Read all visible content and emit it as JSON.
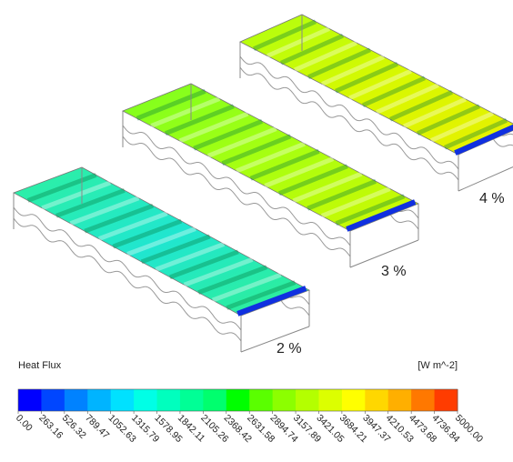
{
  "panels": [
    {
      "label": "2 %"
    },
    {
      "label": "3 %"
    },
    {
      "label": "4 %"
    }
  ],
  "colorbar": {
    "title": "Heat Flux",
    "unit": "[W m^-2]",
    "colors": [
      "#0000ff",
      "#0046ff",
      "#0082ff",
      "#00b4ff",
      "#00e1ff",
      "#00ffe6",
      "#00ffbe",
      "#00ff96",
      "#00ff6e",
      "#00ff00",
      "#5aff00",
      "#8cff00",
      "#b4ff00",
      "#dcff00",
      "#ffff00",
      "#ffd700",
      "#ffaf00",
      "#ff7800",
      "#ff3c00"
    ],
    "ticks": [
      {
        "value": 0,
        "label": "0.00"
      },
      {
        "value": 263.16,
        "label": "263.16"
      },
      {
        "value": 526.32,
        "label": "526.32"
      },
      {
        "value": 789.47,
        "label": "789.47"
      },
      {
        "value": 1052.63,
        "label": "1052.63"
      },
      {
        "value": 1315.79,
        "label": "1315.79"
      },
      {
        "value": 1578.95,
        "label": "1578.95"
      },
      {
        "value": 1842.11,
        "label": "1842.11"
      },
      {
        "value": 2105.26,
        "label": "2105.26"
      },
      {
        "value": 2368.42,
        "label": "2368.42"
      },
      {
        "value": 2631.58,
        "label": "2631.58"
      },
      {
        "value": 2894.74,
        "label": "2894.74"
      },
      {
        "value": 3157.89,
        "label": "3157.89"
      },
      {
        "value": 3421.05,
        "label": "3421.05"
      },
      {
        "value": 3684.21,
        "label": "3684.21"
      },
      {
        "value": 3947.37,
        "label": "3947.37"
      },
      {
        "value": 4210.53,
        "label": "4210.53"
      },
      {
        "value": 4473.68,
        "label": "4473.68"
      },
      {
        "value": 4736.84,
        "label": "4736.84"
      },
      {
        "value": 5000,
        "label": "5000.00"
      }
    ]
  }
}
